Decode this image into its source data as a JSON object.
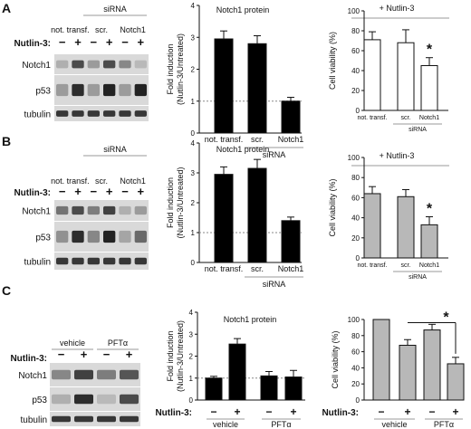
{
  "panels": [
    {
      "letter": "A",
      "blot": {
        "sirna_header": "siRNA",
        "nutlin_label": "Nutlin-3:",
        "groups": [
          "not. transf.",
          "scr.",
          "Notch1"
        ],
        "signs": [
          "−",
          "+",
          "−",
          "+",
          "−",
          "+"
        ],
        "bands": [
          "Notch1",
          "p53",
          "tubulin"
        ]
      }
    },
    {
      "letter": "B",
      "blot": {
        "sirna_header": "siRNA",
        "nutlin_label": "Nutlin-3:",
        "groups": [
          "not. transf.",
          "scr.",
          "Notch1"
        ],
        "signs": [
          "−",
          "+",
          "−",
          "+",
          "−",
          "+"
        ],
        "bands": [
          "Notch1",
          "p53",
          "tubulin"
        ]
      }
    },
    {
      "letter": "C",
      "blot": {
        "sirna_header": "",
        "nutlin_label": "Nutlin-3:",
        "groups": [
          "vehicle",
          "PFTα"
        ],
        "signs": [
          "−",
          "+",
          "−",
          "+"
        ],
        "bands": [
          "Notch1",
          "p53",
          "tubulin"
        ]
      }
    }
  ],
  "chart_data": [
    {
      "id": "A-protein",
      "type": "bar",
      "title": "Notch1 protein",
      "ylabel": [
        "Fold induction",
        "(Nutlin-3/Untreated)"
      ],
      "ylim": [
        0,
        4
      ],
      "yticks": [
        0,
        1,
        2,
        3,
        4
      ],
      "reference_line": 1,
      "categories": [
        "not. transf.",
        "scr.",
        "Notch1"
      ],
      "group_label": "siRNA",
      "values": [
        2.95,
        2.8,
        1.0
      ],
      "errors": [
        0.25,
        0.25,
        0.12
      ],
      "fill": "#000000",
      "significance": []
    },
    {
      "id": "A-viability",
      "type": "bar",
      "title": "+ Nutlin-3",
      "ylabel": [
        "Cell viability (%)"
      ],
      "ylim": [
        0,
        100
      ],
      "yticks": [
        0,
        20,
        40,
        60,
        80,
        100
      ],
      "categories": [
        "not. transf.",
        "scr.",
        "Notch1"
      ],
      "group_label": "siRNA",
      "values": [
        71,
        68,
        45
      ],
      "errors": [
        8,
        13,
        8
      ],
      "fill": "#ffffff",
      "significance": [
        {
          "index": 2,
          "label": "*"
        }
      ]
    },
    {
      "id": "B-protein",
      "type": "bar",
      "title": "Notch1 protein",
      "ylabel": [
        "Fold induction",
        "(Nutlin-3/Untreated)"
      ],
      "ylim": [
        0,
        4
      ],
      "yticks": [
        0,
        1,
        2,
        3,
        4
      ],
      "reference_line": 1,
      "categories": [
        "not. transf.",
        "scr.",
        "Notch1"
      ],
      "group_label": "siRNA",
      "values": [
        2.95,
        3.15,
        1.4
      ],
      "errors": [
        0.25,
        0.3,
        0.12
      ],
      "fill": "#000000",
      "significance": []
    },
    {
      "id": "B-viability",
      "type": "bar",
      "title": "+ Nutlin-3",
      "ylabel": [
        "Cell viability (%)"
      ],
      "ylim": [
        0,
        100
      ],
      "yticks": [
        0,
        20,
        40,
        60,
        80,
        100
      ],
      "categories": [
        "not. transf.",
        "scr.",
        "Notch1"
      ],
      "group_label": "siRNA",
      "values": [
        64,
        61,
        33
      ],
      "errors": [
        7,
        7,
        8
      ],
      "fill": "#b8b8b8",
      "significance": [
        {
          "index": 2,
          "label": "*"
        }
      ]
    },
    {
      "id": "C-protein",
      "type": "bar",
      "title": "Notch1 protein",
      "ylabel": [
        "Fold induction",
        "(Nutlin-3/Untreated)"
      ],
      "ylim": [
        0,
        4
      ],
      "yticks": [
        0,
        1,
        2,
        3,
        4
      ],
      "reference_line": 1,
      "x_title": "Nutlin-3:",
      "categories": [
        "−",
        "+",
        "−",
        "+"
      ],
      "groups": [
        {
          "label": "vehicle",
          "span": [
            0,
            1
          ]
        },
        {
          "label": "PFTα",
          "span": [
            2,
            3
          ]
        }
      ],
      "values": [
        1.0,
        2.55,
        1.1,
        1.05
      ],
      "errors": [
        0.08,
        0.25,
        0.2,
        0.3
      ],
      "fill": "#000000",
      "significance": []
    },
    {
      "id": "C-viability",
      "type": "bar",
      "title": "",
      "ylabel": [
        "Cell viability (%)"
      ],
      "ylim": [
        0,
        100
      ],
      "yticks": [
        0,
        20,
        40,
        60,
        80,
        100
      ],
      "x_title": "Nutlin-3:",
      "categories": [
        "−",
        "+",
        "−",
        "+"
      ],
      "groups": [
        {
          "label": "vehicle",
          "span": [
            0,
            1
          ]
        },
        {
          "label": "PFTα",
          "span": [
            2,
            3
          ]
        }
      ],
      "values": [
        100,
        68,
        87,
        45
      ],
      "errors": [
        0,
        7,
        7,
        8
      ],
      "fill": "#b8b8b8",
      "significance": [
        {
          "bracket": [
            1,
            3
          ],
          "label": "*"
        }
      ]
    }
  ]
}
